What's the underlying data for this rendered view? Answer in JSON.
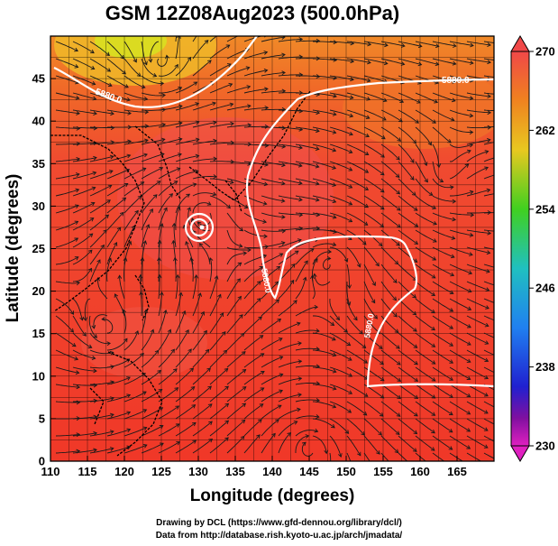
{
  "title": "GSM 12Z08Aug2023 (500.0hPa)",
  "xlabel": "Longitude (degrees)",
  "ylabel": "Latitude  (degrees)",
  "footer": {
    "line1": "Drawing by DCL (https://www.gfd-dennou.org/library/dcl/)",
    "line2": "Data from http://database.rish.kyoto-u.ac.jp/arch/jmadata/"
  },
  "map": {
    "xlim": [
      110,
      170
    ],
    "ylim": [
      0,
      50
    ],
    "x_ticks": [
      "110",
      "115",
      "120",
      "125",
      "130",
      "135",
      "140",
      "145",
      "150",
      "155",
      "160",
      "165"
    ],
    "y_ticks": [
      "0",
      "5",
      "10",
      "15",
      "20",
      "25",
      "30",
      "35",
      "40",
      "45"
    ],
    "contour_labels": [
      "5880.0",
      "5880.0",
      "5880.0",
      "5880.0"
    ],
    "typhoon_center": {
      "lon": 130.3,
      "lat": 29.8
    }
  },
  "colorbar": {
    "labels": [
      "270",
      "262",
      "254",
      "246",
      "238",
      "230"
    ],
    "colors": [
      "#f04030",
      "#f08020",
      "#e8c820",
      "#40d020",
      "#20c0c0",
      "#2080f0",
      "#2020d0",
      "#8010a0",
      "#e020c0"
    ]
  }
}
